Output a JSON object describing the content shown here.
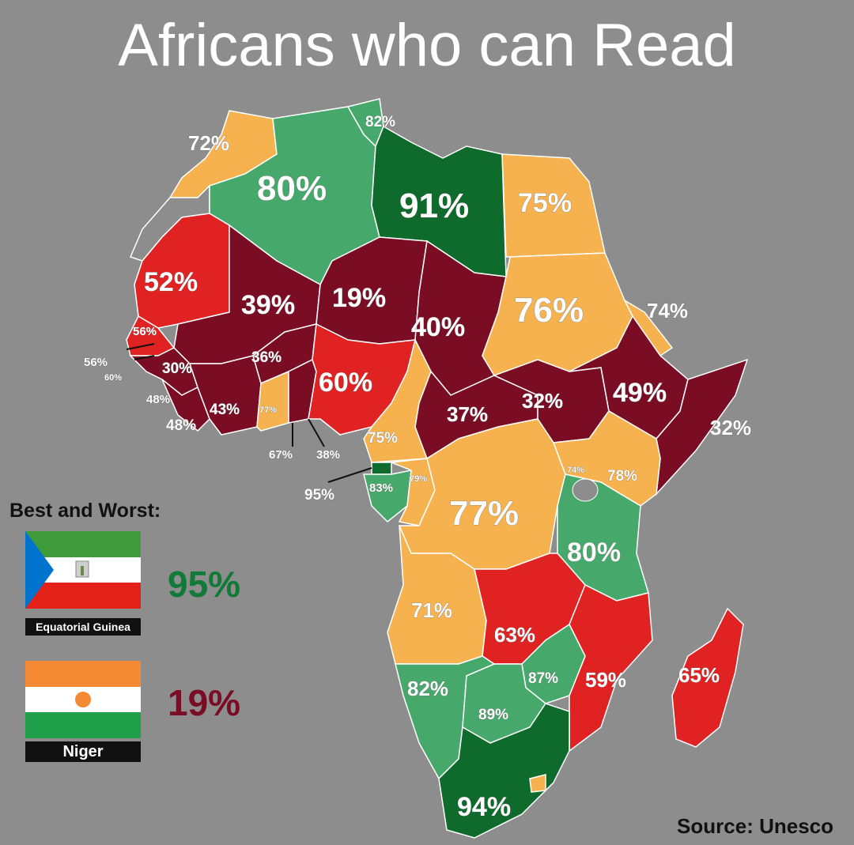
{
  "title": "Africans who can Read",
  "colors": {
    "background": "#8d8d8d",
    "dark_green": "#0e6b2c",
    "green": "#46a96b",
    "orange": "#f7b250",
    "red": "#e02222",
    "maroon": "#7a0d24"
  },
  "map_labels": {
    "morocco": "72%",
    "algeria": "80%",
    "tunisia": "82%",
    "libya": "91%",
    "egypt": "75%",
    "mauritania": "52%",
    "mali": "39%",
    "niger": "19%",
    "chad": "40%",
    "sudan": "76%",
    "eritrea": "74%",
    "senegal": "56%",
    "gambia": "56%",
    "guinea_bissau": "60%",
    "guinea": "30%",
    "burkina_faso": "36%",
    "sierra_leone": "48%",
    "liberia": "48%",
    "cote_divoire": "43%",
    "ghana": "77%",
    "togo": "67%",
    "benin": "38%",
    "nigeria": "60%",
    "cameroon": "75%",
    "car": "37%",
    "south_sudan": "32%",
    "ethiopia": "49%",
    "somalia": "32%",
    "equatorial_guinea": "95%",
    "gabon": "83%",
    "congo": "79%",
    "drc": "77%",
    "uganda": "74%",
    "kenya": "78%",
    "tanzania": "80%",
    "angola": "71%",
    "zambia": "63%",
    "malawi": "87%",
    "mozambique": "59%",
    "madagascar": "65%",
    "namibia": "82%",
    "botswana": "89%",
    "south_africa": "94%"
  },
  "best_and_worst": {
    "heading": "Best and Worst:",
    "best": {
      "country": "Equatorial Guinea",
      "value": "95%",
      "color": "#117a37"
    },
    "worst": {
      "country": "Niger",
      "value": "19%",
      "color": "#7a0d24"
    }
  },
  "source": "Source: Unesco"
}
